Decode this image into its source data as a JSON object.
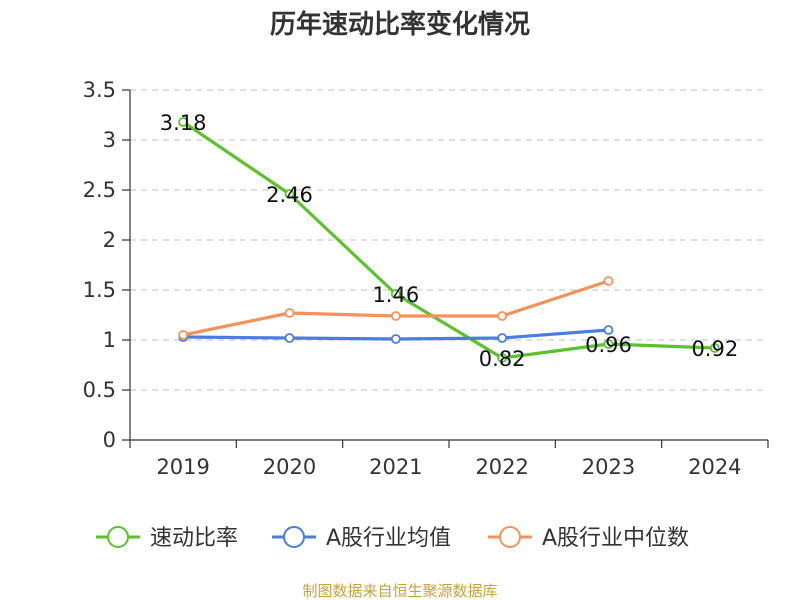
{
  "chart_data": {
    "type": "line",
    "title": "历年速动比率变化情况",
    "xlabel": "",
    "ylabel": "",
    "categories": [
      "2019",
      "2020",
      "2021",
      "2022",
      "2023",
      "2024"
    ],
    "ylim": [
      0,
      3.5
    ],
    "yticks": [
      0,
      0.5,
      1,
      1.5,
      2,
      2.5,
      3,
      3.5
    ],
    "grid": true,
    "legend_position": "bottom",
    "series": [
      {
        "name": "速动比率",
        "color": "#5cc22b",
        "values": [
          3.18,
          2.46,
          1.46,
          0.82,
          0.96,
          0.92
        ],
        "labels": [
          "3.18",
          "2.46",
          "1.46",
          "0.82",
          "0.96",
          "0.92"
        ],
        "show_labels": true
      },
      {
        "name": "A股行业均值",
        "color": "#4a7ddd",
        "values": [
          1.03,
          1.02,
          1.01,
          1.02,
          1.1,
          null
        ],
        "show_labels": false
      },
      {
        "name": "A股行业中位数",
        "color": "#f5915a",
        "values": [
          1.05,
          1.27,
          1.24,
          1.24,
          1.59,
          null
        ],
        "show_labels": false
      }
    ]
  },
  "source_note": "制图数据来自恒生聚源数据库",
  "source_color": "#c8a23c"
}
